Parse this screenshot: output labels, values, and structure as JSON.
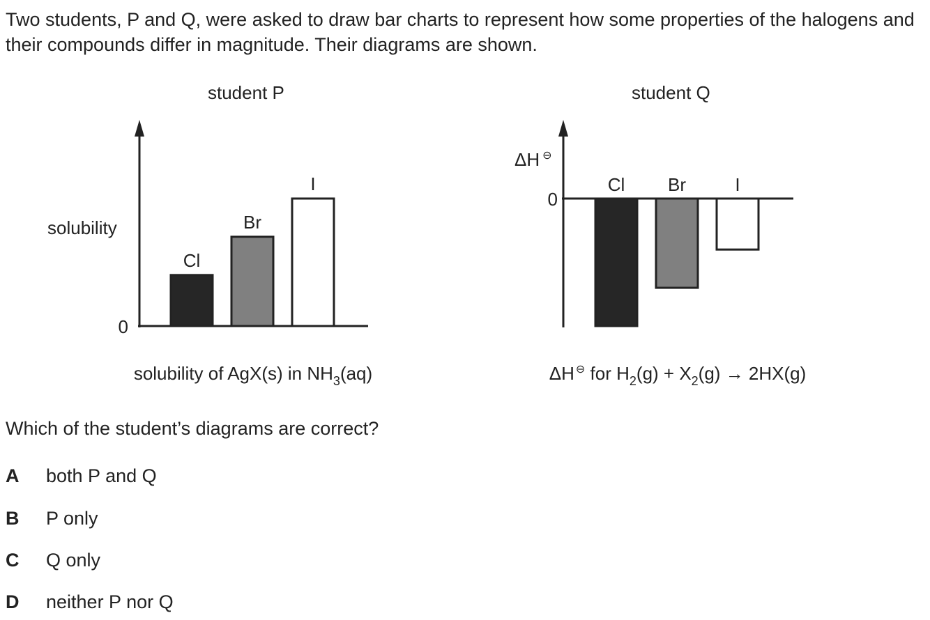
{
  "intro": "Two students, P and Q, were asked to draw bar charts to represent how some properties of the halogens and their compounds differ in magnitude. Their diagrams are shown.",
  "chart_data": [
    {
      "type": "bar",
      "title": "student P",
      "categories": [
        "Cl",
        "Br",
        "I"
      ],
      "values": [
        0.4,
        0.7,
        1.0
      ],
      "colors": [
        "#262626",
        "#808080",
        "#ffffff"
      ],
      "ylabel": "solubility",
      "zero_label": "0",
      "caption": {
        "prefix": "solubility of AgX(s) in NH",
        "sub": "3",
        "suffix": "(aq)"
      }
    },
    {
      "type": "bar",
      "title": "student Q",
      "categories": [
        "Cl",
        "Br",
        "I"
      ],
      "values": [
        -1.0,
        -0.7,
        -0.4
      ],
      "colors": [
        "#262626",
        "#808080",
        "#ffffff"
      ],
      "ylabel": "ΔH",
      "ylabel_sup": "⊖",
      "zero_label": "0",
      "caption": {
        "delta": "ΔH",
        "sup": "⊖",
        "part1": " for H",
        "sub1": "2",
        "part2": "(g)  +  X",
        "sub2": "2",
        "part3": "(g)  →  2HX(g)"
      }
    }
  ],
  "question": "Which of the student’s diagrams are correct?",
  "options": [
    {
      "letter": "A",
      "text": "both P and Q"
    },
    {
      "letter": "B",
      "text": "P only"
    },
    {
      "letter": "C",
      "text": "Q only"
    },
    {
      "letter": "D",
      "text": "neither P nor Q"
    }
  ]
}
